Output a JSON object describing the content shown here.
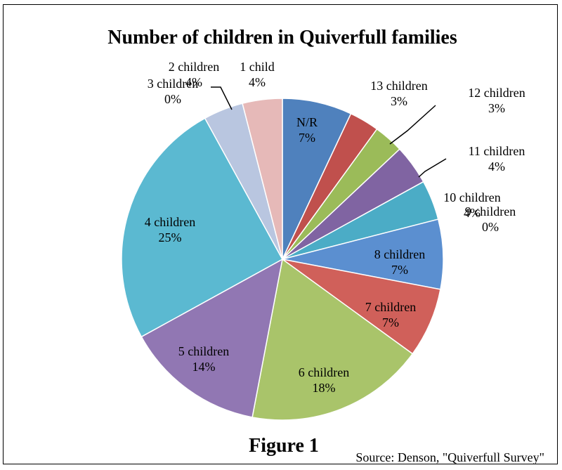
{
  "chart_data": {
    "type": "pie",
    "title": "Number of children in Quiverfull families",
    "caption": "Figure 1",
    "source": "Source: Denson, \"Quiverfull Survey\"",
    "slices": [
      {
        "label": "N/R",
        "value": 7,
        "display": "7%",
        "color": "#4f81bd"
      },
      {
        "label": "13 children",
        "value": 3,
        "display": "3%",
        "color": "#c0504d"
      },
      {
        "label": "12 children",
        "value": 3,
        "display": "3%",
        "color": "#9bbb59"
      },
      {
        "label": "11 children",
        "value": 4,
        "display": "4%",
        "color": "#8064a2"
      },
      {
        "label": "10 children",
        "value": 4,
        "display": "4%",
        "color": "#4bacc6"
      },
      {
        "label": "9 children",
        "value": 0,
        "display": "0%",
        "color": "#f79646"
      },
      {
        "label": "8 children",
        "value": 7,
        "display": "7%",
        "color": "#5b8fd0"
      },
      {
        "label": "7 children",
        "value": 7,
        "display": "7%",
        "color": "#d0605a"
      },
      {
        "label": "6 children",
        "value": 18,
        "display": "18%",
        "color": "#a9c46a"
      },
      {
        "label": "5 children",
        "value": 14,
        "display": "14%",
        "color": "#9177b3"
      },
      {
        "label": "4 children",
        "value": 25,
        "display": "25%",
        "color": "#5bb9d1"
      },
      {
        "label": "3 children",
        "value": 0,
        "display": "0%",
        "color": "#f9a66a"
      },
      {
        "label": "2 children",
        "value": 4,
        "display": "4%",
        "color": "#b9c6e0"
      },
      {
        "label": "1 child",
        "value": 4,
        "display": "4%",
        "color": "#e6b9b8"
      }
    ]
  }
}
